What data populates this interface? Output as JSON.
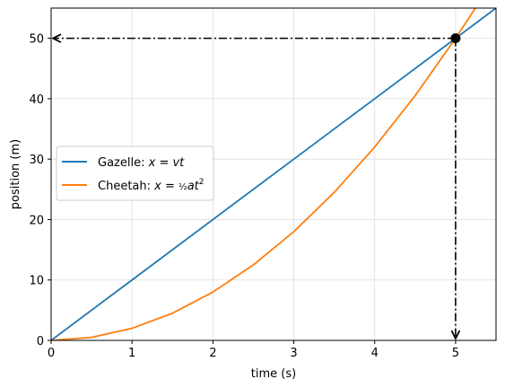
{
  "chart_data": {
    "type": "line",
    "xlabel": "time (s)",
    "ylabel": "position (m)",
    "xlim": [
      0,
      5.5
    ],
    "ylim": [
      0,
      55
    ],
    "xticks": [
      0,
      1,
      2,
      3,
      4,
      5
    ],
    "yticks": [
      0,
      10,
      20,
      30,
      40,
      50
    ],
    "grid": true,
    "legend_position": "center-left",
    "series": [
      {
        "name": "Gazelle: x = vt",
        "legend_base": "Gazelle: ",
        "color": "#1f77b4",
        "x": [
          0,
          1,
          2,
          3,
          4,
          5,
          5.5
        ],
        "y": [
          0,
          10,
          20,
          30,
          40,
          50,
          55
        ]
      },
      {
        "name": "Cheetah: x = ½at²",
        "legend_base": "Cheetah: ",
        "color": "#ff7f0e",
        "x": [
          0,
          0.5,
          1,
          1.5,
          2,
          2.5,
          3,
          3.5,
          4,
          4.5,
          5,
          5.25
        ],
        "y": [
          0,
          0.5,
          2,
          4.5,
          8,
          12.5,
          18,
          24.5,
          32,
          40.5,
          50,
          55.1
        ]
      }
    ],
    "intersection": {
      "x": 5,
      "y": 50
    },
    "annotations": [
      {
        "style": "dash-dot-arrow",
        "from": [
          5,
          50
        ],
        "to": [
          0,
          50
        ]
      },
      {
        "style": "dash-dot-arrow",
        "from": [
          5,
          50
        ],
        "to": [
          5,
          0
        ]
      }
    ]
  }
}
